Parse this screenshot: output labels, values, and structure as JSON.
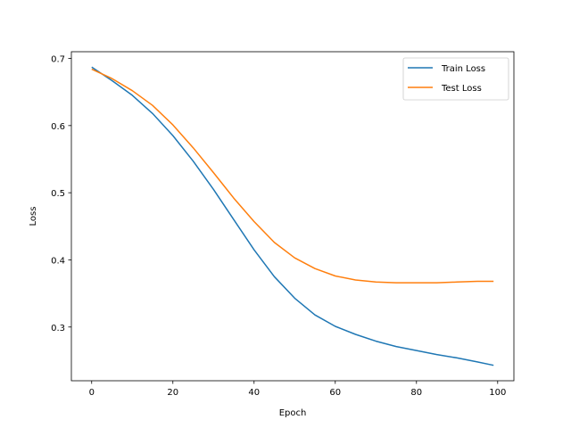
{
  "chart_data": {
    "type": "line",
    "title": "",
    "xlabel": "Epoch",
    "ylabel": "Loss",
    "xlim": [
      -5,
      104
    ],
    "ylim": [
      0.22,
      0.71
    ],
    "xticks": [
      0,
      20,
      40,
      60,
      80,
      100
    ],
    "yticks": [
      0.3,
      0.4,
      0.5,
      0.6,
      0.7
    ],
    "xtick_labels": [
      "0",
      "20",
      "40",
      "60",
      "80",
      "100"
    ],
    "ytick_labels": [
      "0.3",
      "0.4",
      "0.5",
      "0.6",
      "0.7"
    ],
    "grid": false,
    "legend_position": "top-right",
    "x": [
      0,
      5,
      10,
      15,
      20,
      25,
      30,
      35,
      40,
      45,
      50,
      55,
      60,
      65,
      70,
      75,
      80,
      85,
      90,
      95,
      99
    ],
    "series": [
      {
        "name": "Train Loss",
        "color": "#1f77b4",
        "values": [
          0.687,
          0.667,
          0.645,
          0.618,
          0.585,
          0.547,
          0.505,
          0.46,
          0.415,
          0.375,
          0.343,
          0.318,
          0.301,
          0.289,
          0.279,
          0.271,
          0.265,
          0.259,
          0.254,
          0.248,
          0.243
        ]
      },
      {
        "name": "Test Loss",
        "color": "#ff7f0e",
        "values": [
          0.684,
          0.67,
          0.652,
          0.63,
          0.601,
          0.567,
          0.53,
          0.492,
          0.457,
          0.426,
          0.403,
          0.387,
          0.376,
          0.37,
          0.367,
          0.366,
          0.366,
          0.366,
          0.367,
          0.368,
          0.368
        ]
      }
    ]
  }
}
